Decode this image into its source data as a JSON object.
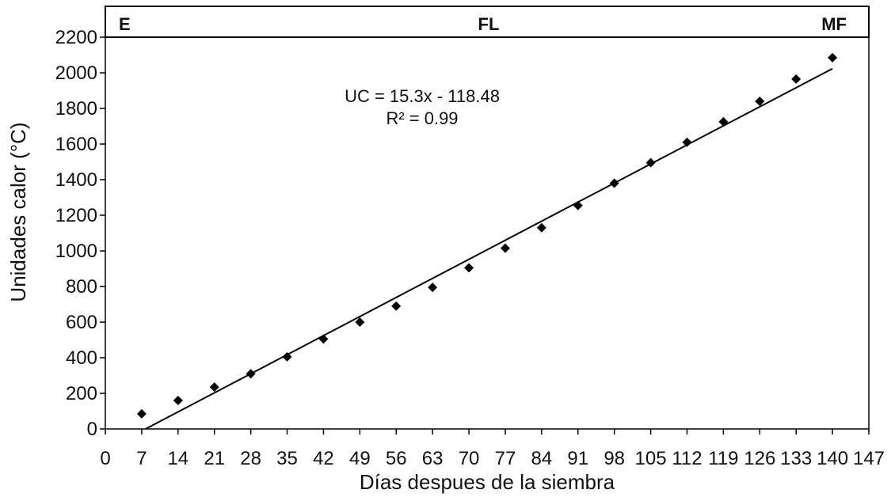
{
  "chart_data": {
    "type": "scatter",
    "xlabel": "Días despues de la siembra",
    "ylabel": "Unidades calor (°C)",
    "xlim": [
      0,
      147
    ],
    "ylim": [
      0,
      2200
    ],
    "x_ticks": [
      "0",
      "7",
      "14",
      "21",
      "28",
      "35",
      "42",
      "49",
      "56",
      "63",
      "70",
      "77",
      "84",
      "91",
      "98",
      "105",
      "112",
      "119",
      "126",
      "133",
      "140",
      "147"
    ],
    "y_ticks": [
      "0",
      "200",
      "400",
      "600",
      "800",
      "1000",
      "1200",
      "1400",
      "1600",
      "1800",
      "2000",
      "2200"
    ],
    "grid": false,
    "series": [
      {
        "marker": "diamond",
        "color": "#000000",
        "x": [
          7,
          14,
          21,
          28,
          35,
          42,
          49,
          56,
          63,
          70,
          77,
          84,
          91,
          98,
          105,
          112,
          119,
          126,
          133,
          140
        ],
        "y": [
          85,
          160,
          235,
          310,
          405,
          505,
          600,
          690,
          795,
          905,
          1015,
          1130,
          1255,
          1380,
          1495,
          1610,
          1725,
          1840,
          1965,
          2085
        ]
      }
    ],
    "trendline": {
      "slope": 15.3,
      "intercept": -118.48,
      "x_range": [
        7.74,
        140
      ],
      "color": "#000000"
    },
    "annotations": {
      "equation": "UC = 15.3x - 118.48",
      "r2": "R² = 0.99"
    },
    "stages": {
      "left": "E",
      "center": "FL",
      "right": "MF"
    }
  }
}
